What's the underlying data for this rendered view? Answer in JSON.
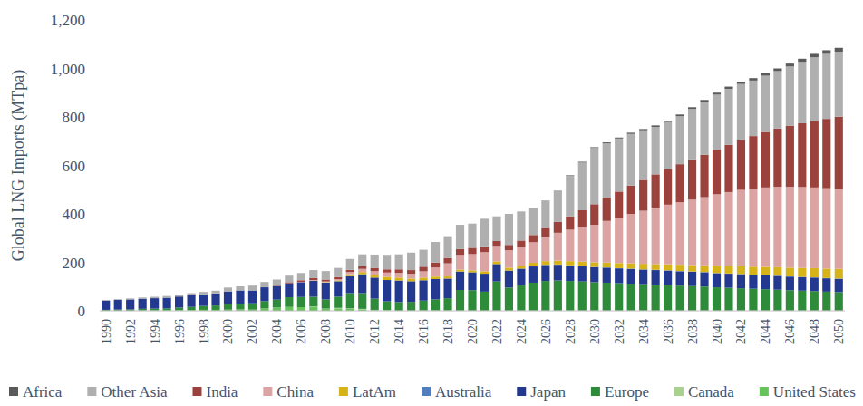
{
  "chart_data": {
    "type": "bar",
    "stacked": true,
    "grid": false,
    "legend": "bottom",
    "y_label": "Global LNG Imports (MTpa)",
    "ylim": [
      0,
      1200
    ],
    "yticks": [
      0,
      200,
      400,
      600,
      800,
      {
        "value": 1000,
        "label": "1,000"
      },
      {
        "value": 1200,
        "label": "1,200"
      }
    ],
    "categories": [
      "1990",
      null,
      "1992",
      null,
      "1994",
      null,
      "1996",
      null,
      "1998",
      null,
      "2000",
      null,
      "2002",
      null,
      "2004",
      null,
      "2006",
      null,
      "2008",
      null,
      "2010",
      null,
      "2012",
      null,
      "2014",
      null,
      "2016",
      null,
      "2018",
      null,
      "2020",
      null,
      "2022",
      null,
      "2024",
      null,
      "2026",
      null,
      "2028",
      null,
      "2030",
      null,
      "2032",
      null,
      "2034",
      null,
      "2036",
      null,
      "2038",
      null,
      "2040",
      null,
      "2042",
      null,
      "2044",
      null,
      "2046",
      null,
      "2048",
      null,
      "2050"
    ],
    "series": [
      {
        "name": "United States",
        "color": "#66c25a",
        "values": [
          1,
          1,
          1,
          2,
          2,
          2,
          3,
          3,
          4,
          4,
          5,
          6,
          5,
          10,
          14,
          16,
          15,
          17,
          8,
          10,
          8,
          6,
          3,
          2,
          1,
          1,
          2,
          2,
          2,
          1,
          1,
          1,
          1,
          1,
          1,
          1,
          1,
          1,
          1,
          1,
          1,
          1,
          1,
          1,
          1,
          1,
          1,
          1,
          1,
          1,
          1,
          1,
          1,
          1,
          1,
          1,
          1,
          1,
          1,
          1,
          1
        ]
      },
      {
        "name": "Canada",
        "color": "#a9d18e",
        "values": [
          0,
          0,
          0,
          0,
          0,
          0,
          0,
          0,
          0,
          0,
          0,
          0,
          0,
          0,
          0,
          0,
          0,
          1,
          1,
          2,
          2,
          2,
          1,
          1,
          0,
          0,
          0,
          0,
          0,
          0,
          0,
          0,
          0,
          0,
          0,
          0,
          0,
          0,
          0,
          0,
          0,
          0,
          0,
          0,
          0,
          0,
          0,
          0,
          0,
          0,
          0,
          0,
          0,
          0,
          0,
          0,
          0,
          0,
          0,
          0,
          0
        ]
      },
      {
        "name": "Europe",
        "color": "#2e8b3a",
        "values": [
          3,
          4,
          5,
          6,
          7,
          8,
          10,
          13,
          16,
          18,
          22,
          24,
          26,
          30,
          32,
          40,
          42,
          40,
          38,
          46,
          63,
          65,
          46,
          36,
          35,
          36,
          40,
          45,
          50,
          85,
          84,
          78,
          120,
          95,
          105,
          115,
          122,
          124,
          122,
          120,
          117,
          115,
          113,
          111,
          109,
          107,
          105,
          103,
          101,
          99,
          96,
          94,
          92,
          90,
          88,
          86,
          84,
          82,
          80,
          78,
          76
        ]
      },
      {
        "name": "Japan",
        "color": "#23398f",
        "values": [
          38,
          40,
          41,
          42,
          43,
          44,
          46,
          48,
          48,
          50,
          53,
          54,
          53,
          57,
          56,
          57,
          61,
          66,
          69,
          64,
          70,
          78,
          87,
          88,
          89,
          85,
          84,
          84,
          81,
          76,
          74,
          74,
          72,
          70,
          68,
          67,
          66,
          65,
          64,
          63,
          62,
          62,
          61,
          61,
          60,
          60,
          60,
          59,
          59,
          59,
          58,
          58,
          58,
          57,
          57,
          57,
          56,
          56,
          56,
          55,
          55
        ]
      },
      {
        "name": "Australia",
        "color": "#4f7fbf",
        "values": [
          0,
          0,
          0,
          0,
          0,
          0,
          0,
          0,
          0,
          0,
          0,
          0,
          0,
          0,
          0,
          0,
          0,
          0,
          0,
          0,
          0,
          0,
          0,
          0,
          0,
          0,
          0,
          0,
          0,
          0,
          0,
          0,
          0,
          0,
          0,
          1,
          1,
          1,
          1,
          1,
          1,
          1,
          1,
          1,
          1,
          1,
          1,
          1,
          1,
          1,
          1,
          1,
          1,
          1,
          1,
          1,
          1,
          1,
          1,
          1,
          1
        ]
      },
      {
        "name": "LatAm",
        "color": "#d6b419",
        "values": [
          0,
          0,
          0,
          0,
          0,
          0,
          0,
          0,
          0,
          0,
          0,
          0,
          0,
          0,
          0,
          0,
          0,
          0,
          2,
          3,
          8,
          9,
          12,
          13,
          12,
          11,
          11,
          10,
          9,
          8,
          8,
          10,
          11,
          12,
          13,
          14,
          15,
          16,
          17,
          18,
          19,
          20,
          21,
          22,
          23,
          24,
          25,
          26,
          27,
          28,
          30,
          31,
          32,
          33,
          34,
          35,
          36,
          37,
          38,
          39,
          40
        ]
      },
      {
        "name": "China",
        "color": "#dba3a1",
        "values": [
          0,
          0,
          0,
          0,
          0,
          0,
          0,
          0,
          0,
          0,
          0,
          0,
          0,
          0,
          0,
          0,
          1,
          3,
          3,
          5,
          9,
          13,
          15,
          18,
          20,
          20,
          26,
          38,
          54,
          61,
          67,
          79,
          64,
          72,
          78,
          85,
          100,
          115,
          130,
          142,
          155,
          172,
          188,
          204,
          219,
          233,
          246,
          258,
          270,
          281,
          295,
          305,
          315,
          322,
          328,
          332,
          334,
          334,
          333,
          332,
          331
        ]
      },
      {
        "name": "India",
        "color": "#9b423d",
        "values": [
          0,
          0,
          0,
          0,
          0,
          0,
          0,
          0,
          0,
          0,
          0,
          0,
          0,
          0,
          2,
          5,
          7,
          8,
          8,
          9,
          9,
          12,
          13,
          13,
          14,
          15,
          19,
          20,
          22,
          24,
          26,
          24,
          20,
          22,
          25,
          30,
          37,
          45,
          55,
          70,
          85,
          96,
          107,
          117,
          127,
          137,
          147,
          157,
          166,
          175,
          184,
          195,
          206,
          217,
          229,
          240,
          252,
          263,
          275,
          286,
          297
        ]
      },
      {
        "name": "Other Asia",
        "color": "#afafaf",
        "values": [
          3,
          3,
          4,
          5,
          6,
          7,
          8,
          9,
          10,
          11,
          16,
          17,
          20,
          22,
          25,
          27,
          30,
          33,
          35,
          38,
          45,
          48,
          55,
          60,
          62,
          72,
          70,
          85,
          90,
          100,
          100,
          114,
          102,
          128,
          120,
          110,
          112,
          126,
          168,
          197,
          232,
          224,
          219,
          213,
          205,
          196,
          194,
          198,
          208,
          218,
          227,
          231,
          231,
          229,
          232,
          237,
          244,
          253,
          262,
          268,
          268
        ]
      },
      {
        "name": "Africa",
        "color": "#5a5a5a",
        "values": [
          0,
          0,
          0,
          0,
          0,
          0,
          0,
          0,
          0,
          0,
          0,
          0,
          0,
          0,
          0,
          0,
          0,
          0,
          0,
          0,
          0,
          0,
          0,
          0,
          0,
          0,
          0,
          0,
          0,
          0,
          0,
          0,
          0,
          0,
          0,
          1,
          1,
          2,
          2,
          3,
          3,
          4,
          4,
          5,
          5,
          6,
          6,
          7,
          7,
          8,
          8,
          9,
          9,
          10,
          10,
          11,
          12,
          13,
          14,
          15,
          16
        ]
      }
    ]
  }
}
